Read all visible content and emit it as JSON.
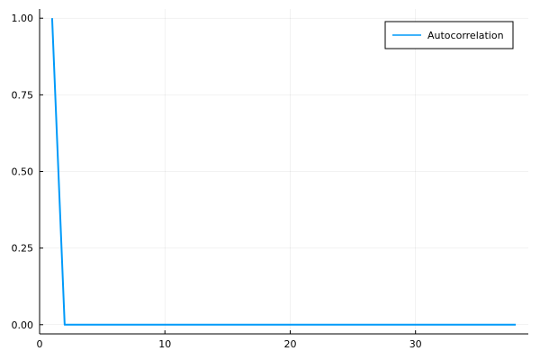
{
  "chart_data": {
    "type": "line",
    "title": "",
    "xlabel": "",
    "ylabel": "",
    "xlim": [
      0,
      39
    ],
    "ylim": [
      -0.03,
      1.03
    ],
    "xticks": [
      0,
      10,
      20,
      30
    ],
    "xtick_labels": [
      "0",
      "10",
      "20",
      "30"
    ],
    "yticks": [
      0,
      0.25,
      0.5,
      0.75,
      1.0
    ],
    "ytick_labels": [
      "0.00",
      "0.25",
      "0.50",
      "0.75",
      "1.00"
    ],
    "grid": true,
    "legend_position": "top-right",
    "series": [
      {
        "name": "Autocorrelation",
        "color": "#009af9",
        "x": [
          1,
          2,
          3,
          4,
          5,
          6,
          7,
          8,
          9,
          10,
          11,
          12,
          13,
          14,
          15,
          16,
          17,
          18,
          19,
          20,
          21,
          22,
          23,
          24,
          25,
          26,
          27,
          28,
          29,
          30,
          31,
          32,
          33,
          34,
          35,
          36,
          37,
          38
        ],
        "values": [
          1.0,
          0,
          0,
          0,
          0,
          0,
          0,
          0,
          0,
          0,
          0,
          0,
          0,
          0,
          0,
          0,
          0,
          0,
          0,
          0,
          0,
          0,
          0,
          0,
          0,
          0,
          0,
          0,
          0,
          0,
          0,
          0,
          0,
          0,
          0,
          0,
          0,
          0
        ]
      }
    ]
  }
}
